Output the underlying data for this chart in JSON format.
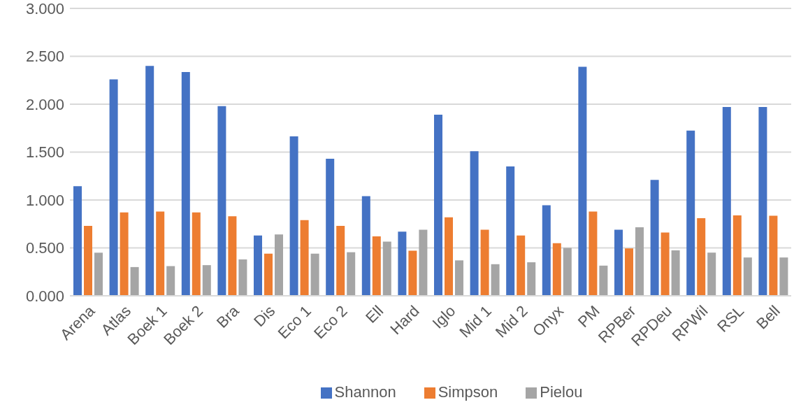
{
  "chart_data": {
    "type": "bar",
    "categories": [
      "Arena",
      "Atlas",
      "Boek 1",
      "Boek 2",
      "Bra",
      "Dis",
      "Eco 1",
      "Eco 2",
      "Ell",
      "Hard",
      "Iglo",
      "Mid 1",
      "Mid 2",
      "Onyx",
      "PM",
      "RPBer",
      "RPDeu",
      "RPWil",
      "RSL",
      "Bell"
    ],
    "series": [
      {
        "name": "Shannon",
        "color": "#4472c4",
        "values": [
          1.145,
          2.26,
          2.4,
          2.335,
          1.98,
          0.63,
          1.665,
          1.43,
          1.04,
          0.67,
          1.89,
          1.51,
          1.35,
          0.945,
          2.39,
          0.69,
          1.21,
          1.725,
          1.97,
          1.97
        ]
      },
      {
        "name": "Simpson",
        "color": "#ed7d31",
        "values": [
          0.73,
          0.87,
          0.88,
          0.87,
          0.83,
          0.44,
          0.79,
          0.73,
          0.62,
          0.47,
          0.82,
          0.69,
          0.63,
          0.55,
          0.88,
          0.495,
          0.66,
          0.81,
          0.84,
          0.835
        ]
      },
      {
        "name": "Pielou",
        "color": "#a5a5a5",
        "values": [
          0.45,
          0.3,
          0.31,
          0.32,
          0.38,
          0.64,
          0.44,
          0.455,
          0.565,
          0.69,
          0.37,
          0.33,
          0.35,
          0.5,
          0.315,
          0.715,
          0.475,
          0.45,
          0.4,
          0.4
        ]
      }
    ],
    "ylim": [
      0,
      3
    ],
    "yticks": [
      {
        "value": 0,
        "label": "0.000"
      },
      {
        "value": 0.5,
        "label": "0.500"
      },
      {
        "value": 1,
        "label": "1.000"
      },
      {
        "value": 1.5,
        "label": "1.500"
      },
      {
        "value": 2,
        "label": "2.000"
      },
      {
        "value": 2.5,
        "label": "2.500"
      },
      {
        "value": 3,
        "label": "3.000"
      }
    ],
    "grid": "y",
    "legend": "bottom"
  }
}
